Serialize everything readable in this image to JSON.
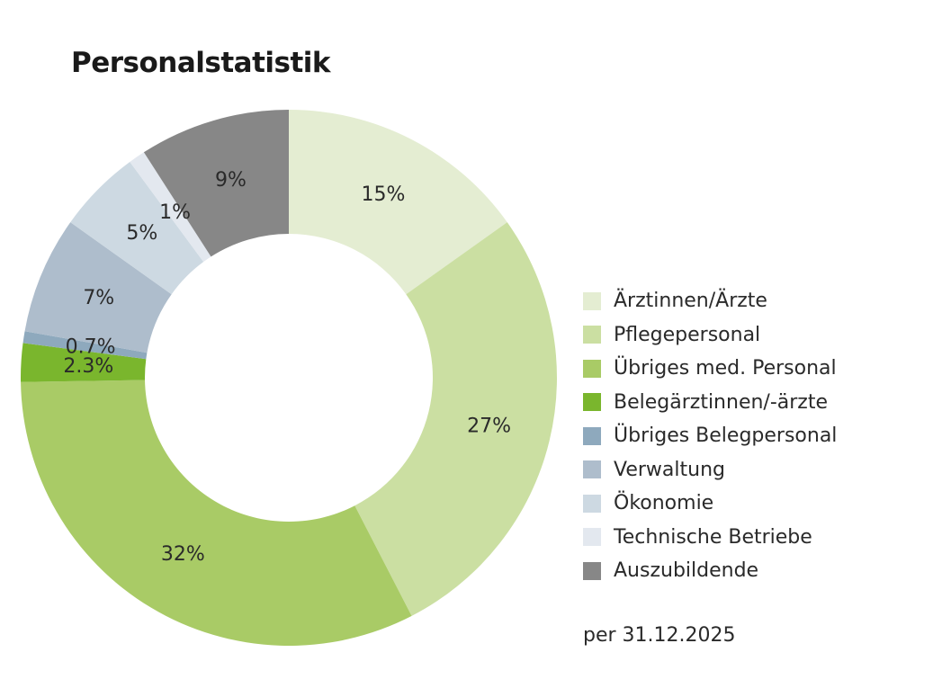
{
  "chart_data": {
    "type": "pie",
    "title": "Personalstatistik",
    "note": "per 31.12.2025",
    "legend_position": "right",
    "categories": [
      "Ärztinnen/Ärzte",
      "Pflegepersonal",
      "Übriges med. Personal",
      "Belegärztinnen/-ärzte",
      "Übriges Belegpersonal",
      "Verwaltung",
      "Ökonomie",
      "Technische Betriebe",
      "Auszubildende"
    ],
    "values": [
      15,
      27,
      32,
      2.3,
      0.7,
      7,
      5,
      1,
      9
    ],
    "value_labels": [
      "15%",
      "27%",
      "32%",
      "2.3%",
      "0.7%",
      "7%",
      "5%",
      "1%",
      "9%"
    ],
    "colors": [
      "#e4edd2",
      "#cbdfa2",
      "#a9cb66",
      "#7ab62d",
      "#8ea9bd",
      "#aebdcc",
      "#cdd9e2",
      "#e3e8ef",
      "#878787"
    ]
  }
}
